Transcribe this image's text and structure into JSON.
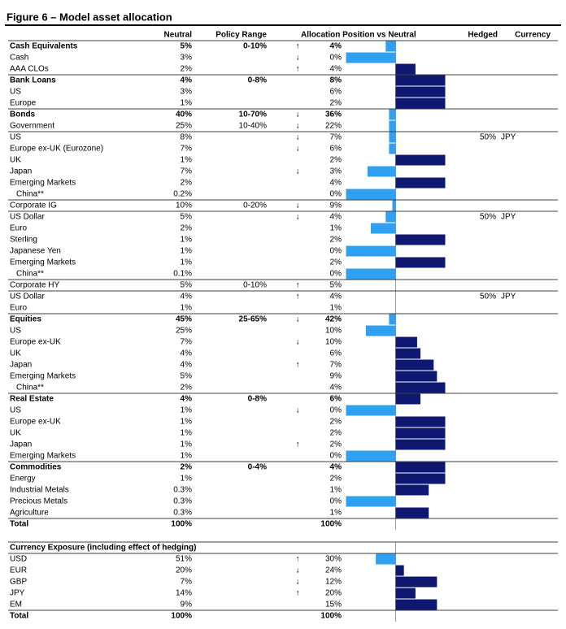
{
  "header": {
    "title": "Figure 6 – Model asset allocation"
  },
  "table": {
    "columns": {
      "neutral": "Neutral",
      "range": "Policy Range",
      "allocation": "Allocation Position vs Neutral",
      "hedged": "Hedged",
      "currency": "Currency"
    },
    "bar_lim": [
      -3,
      3
    ],
    "positive_color": "#0f1870",
    "negative_color": "#2fa0f2",
    "rows": [
      {
        "name": "Cash Equivalents",
        "neutral": "5%",
        "range": "0-10%",
        "arrow": "↑",
        "allocation": "4%",
        "bar": -0.6,
        "bold": true,
        "rule": true
      },
      {
        "name": "Cash",
        "neutral": "3%",
        "arrow": "↓",
        "allocation": "0%",
        "bar": -3
      },
      {
        "name": "AAA CLOs",
        "neutral": "2%",
        "arrow": "↑",
        "allocation": "4%",
        "bar": 1.2
      },
      {
        "name": "Bank Loans",
        "neutral": "4%",
        "range": "0-8%",
        "allocation": "8%",
        "bar": 3,
        "bold": true,
        "rule": true
      },
      {
        "name": "US",
        "neutral": "3%",
        "allocation": "6%",
        "bar": 3
      },
      {
        "name": "Europe",
        "neutral": "1%",
        "allocation": "2%",
        "bar": 3
      },
      {
        "name": "Bonds",
        "neutral": "40%",
        "range": "10-70%",
        "arrow": "↓",
        "allocation": "36%",
        "bar": -0.4,
        "bold": true,
        "rule": true
      },
      {
        "name": "Government",
        "neutral": "25%",
        "range": "10-40%",
        "arrow": "↓",
        "allocation": "22%",
        "bar": -0.4
      },
      {
        "name": "US",
        "neutral": "8%",
        "arrow": "↓",
        "allocation": "7%",
        "bar": -0.4,
        "hedged": "50%",
        "currency": "JPY",
        "rule": true
      },
      {
        "name": "Europe ex-UK (Eurozone)",
        "neutral": "7%",
        "arrow": "↓",
        "allocation": "6%",
        "bar": -0.4
      },
      {
        "name": "UK",
        "neutral": "1%",
        "allocation": "2%",
        "bar": 3
      },
      {
        "name": "Japan",
        "neutral": "7%",
        "arrow": "↓",
        "allocation": "3%",
        "bar": -1.7
      },
      {
        "name": "Emerging Markets",
        "neutral": "2%",
        "allocation": "4%",
        "bar": 3
      },
      {
        "name": "China**",
        "neutral": "0.2%",
        "allocation": "0%",
        "bar": -3,
        "indent": true
      },
      {
        "name": "Corporate IG",
        "neutral": "10%",
        "range": "0-20%",
        "arrow": "↓",
        "allocation": "9%",
        "bar": -0.2,
        "rule": true
      },
      {
        "name": "US Dollar",
        "neutral": "5%",
        "arrow": "↓",
        "allocation": "4%",
        "bar": -0.6,
        "hedged": "50%",
        "currency": "JPY",
        "rule": true
      },
      {
        "name": "Euro",
        "neutral": "2%",
        "allocation": "1%",
        "bar": -1.5
      },
      {
        "name": "Sterling",
        "neutral": "1%",
        "allocation": "2%",
        "bar": 3
      },
      {
        "name": "Japanese Yen",
        "neutral": "1%",
        "allocation": "0%",
        "bar": -3
      },
      {
        "name": "Emerging Markets",
        "neutral": "1%",
        "allocation": "2%",
        "bar": 3
      },
      {
        "name": "China**",
        "neutral": "0.1%",
        "allocation": "0%",
        "bar": -3,
        "indent": true
      },
      {
        "name": "Corporate HY",
        "neutral": "5%",
        "range": "0-10%",
        "arrow": "↑",
        "allocation": "5%",
        "rule": true
      },
      {
        "name": "US Dollar",
        "neutral": "4%",
        "arrow": "↑",
        "allocation": "4%",
        "hedged": "50%",
        "currency": "JPY",
        "rule": true
      },
      {
        "name": "Euro",
        "neutral": "1%",
        "allocation": "1%"
      },
      {
        "name": "Equities",
        "neutral": "45%",
        "range": "25-65%",
        "arrow": "↓",
        "allocation": "42%",
        "bar": -0.4,
        "bold": true,
        "rule": true
      },
      {
        "name": "US",
        "neutral": "25%",
        "allocation": "10%",
        "bar": -1.8
      },
      {
        "name": "Europe ex-UK",
        "neutral": "7%",
        "arrow": "↓",
        "allocation": "10%",
        "bar": 1.3
      },
      {
        "name": "UK",
        "neutral": "4%",
        "allocation": "6%",
        "bar": 1.5
      },
      {
        "name": "Japan",
        "neutral": "4%",
        "arrow": "↑",
        "allocation": "7%",
        "bar": 2.3
      },
      {
        "name": "Emerging Markets",
        "neutral": "5%",
        "allocation": "9%",
        "bar": 2.5
      },
      {
        "name": "China**",
        "neutral": "2%",
        "allocation": "4%",
        "bar": 3,
        "indent": true
      },
      {
        "name": "Real Estate",
        "neutral": "4%",
        "range": "0-8%",
        "allocation": "6%",
        "bar": 1.5,
        "bold": true,
        "rule": true
      },
      {
        "name": "US",
        "neutral": "1%",
        "arrow": "↓",
        "allocation": "0%",
        "bar": -3
      },
      {
        "name": "Europe ex-UK",
        "neutral": "1%",
        "allocation": "2%",
        "bar": 3
      },
      {
        "name": "UK",
        "neutral": "1%",
        "allocation": "2%",
        "bar": 3
      },
      {
        "name": "Japan",
        "neutral": "1%",
        "arrow": "↑",
        "allocation": "2%",
        "bar": 3
      },
      {
        "name": "Emerging Markets",
        "neutral": "1%",
        "allocation": "0%",
        "bar": -3
      },
      {
        "name": "Commodities",
        "neutral": "2%",
        "range": "0-4%",
        "allocation": "4%",
        "bar": 3,
        "bold": true,
        "rule": true
      },
      {
        "name": "Energy",
        "neutral": "1%",
        "allocation": "2%",
        "bar": 3
      },
      {
        "name": "Industrial Metals",
        "neutral": "0.3%",
        "allocation": "1%",
        "bar": 2
      },
      {
        "name": "Precious Metals",
        "neutral": "0.3%",
        "allocation": "0%",
        "bar": -3
      },
      {
        "name": "Agriculture",
        "neutral": "0.3%",
        "allocation": "1%",
        "bar": 2
      },
      {
        "name": "Total",
        "neutral": "100%",
        "allocation": "100%",
        "bold": true,
        "rule": true
      }
    ]
  },
  "currency": {
    "rows": [
      {
        "name": "Currency Exposure (including effect of hedging)",
        "bold": true,
        "rule": true
      },
      {
        "name": "USD",
        "neutral": "51%",
        "arrow": "↑",
        "allocation": "30%",
        "bar": -1.2,
        "rule": true
      },
      {
        "name": "EUR",
        "neutral": "20%",
        "arrow": "↓",
        "allocation": "24%",
        "bar": 0.5
      },
      {
        "name": "GBP",
        "neutral": "7%",
        "arrow": "↓",
        "allocation": "12%",
        "bar": 2.5
      },
      {
        "name": "JPY",
        "neutral": "14%",
        "arrow": "↑",
        "allocation": "20%",
        "bar": 1.2
      },
      {
        "name": "EM",
        "neutral": "9%",
        "allocation": "15%",
        "bar": 2.5
      },
      {
        "name": "Total",
        "neutral": "100%",
        "allocation": "100%",
        "bold": true,
        "rule": true
      }
    ]
  }
}
